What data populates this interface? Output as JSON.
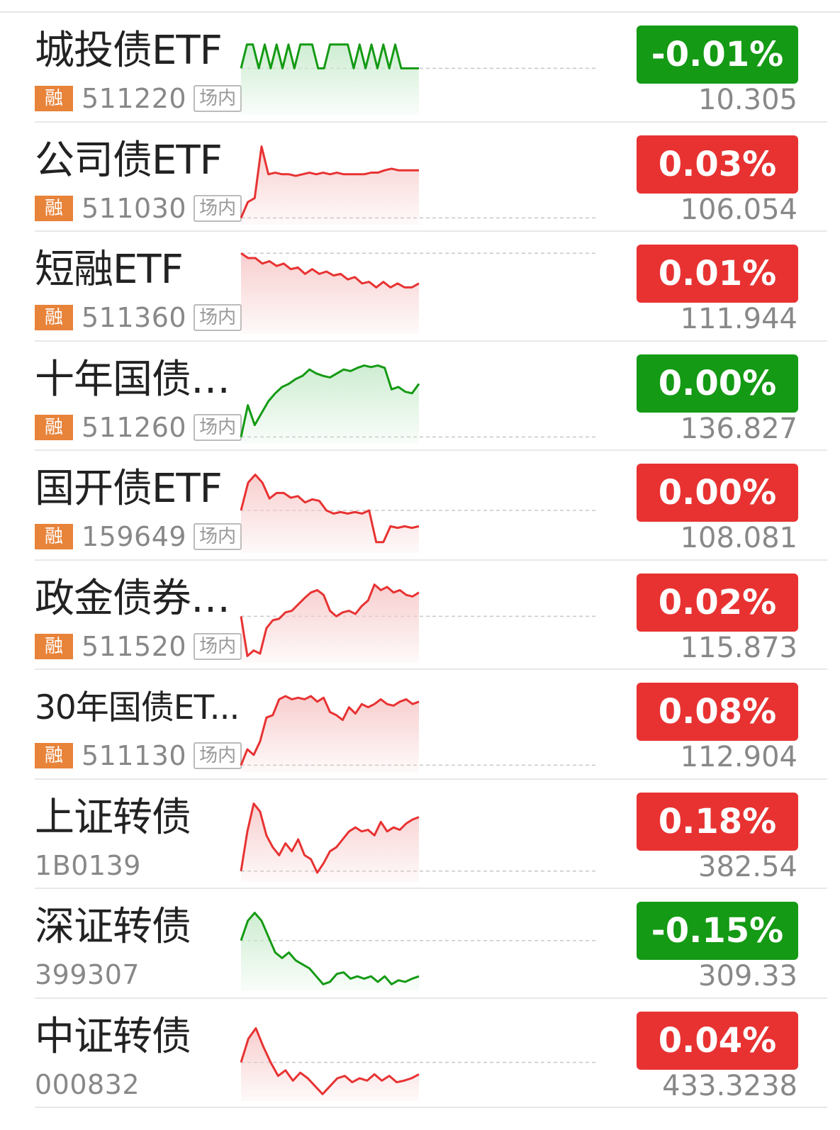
{
  "colors": {
    "up": "#e83232",
    "down": "#149a14",
    "up_fill": "#f7c9c9",
    "down_fill": "#c9ebcd",
    "badge_rong": "#e8833a"
  },
  "rows": [
    {
      "name": "城投债ETF",
      "badge": "融",
      "code": "511220",
      "market": "场内",
      "change_pct": "-0.01%",
      "price": "10.305",
      "direction": "down",
      "spark": [
        0.55,
        0.85,
        0.85,
        0.55,
        0.85,
        0.55,
        0.85,
        0.55,
        0.85,
        0.55,
        0.85,
        0.85,
        0.85,
        0.55,
        0.55,
        0.85,
        0.85,
        0.85,
        0.85,
        0.55,
        0.85,
        0.55,
        0.85,
        0.55,
        0.85,
        0.55,
        0.85,
        0.55,
        0.55,
        0.55,
        0.55
      ]
    },
    {
      "name": "公司债ETF",
      "badge": "融",
      "code": "511030",
      "market": "场内",
      "change_pct": "0.03%",
      "price": "106.054",
      "direction": "up",
      "spark": [
        0.05,
        0.25,
        0.3,
        0.95,
        0.6,
        0.62,
        0.6,
        0.6,
        0.58,
        0.6,
        0.62,
        0.6,
        0.62,
        0.6,
        0.62,
        0.6,
        0.6,
        0.6,
        0.6,
        0.62,
        0.62,
        0.65,
        0.67,
        0.65,
        0.65,
        0.65,
        0.65
      ]
    },
    {
      "name": "短融ETF",
      "badge": "融",
      "code": "511360",
      "market": "场内",
      "change_pct": "0.01%",
      "price": "111.944",
      "direction": "up",
      "spark": [
        0.98,
        0.92,
        0.92,
        0.85,
        0.88,
        0.82,
        0.85,
        0.78,
        0.8,
        0.72,
        0.78,
        0.72,
        0.75,
        0.7,
        0.72,
        0.65,
        0.68,
        0.6,
        0.62,
        0.55,
        0.62,
        0.55,
        0.6,
        0.55,
        0.55,
        0.6
      ]
    },
    {
      "name": "十年国债ETF",
      "badge": "融",
      "code": "511260",
      "market": "场内",
      "change_pct": "0.00%",
      "price": "136.827",
      "direction": "down",
      "spark": [
        0.05,
        0.45,
        0.2,
        0.35,
        0.5,
        0.6,
        0.68,
        0.72,
        0.78,
        0.82,
        0.9,
        0.85,
        0.82,
        0.8,
        0.85,
        0.9,
        0.88,
        0.92,
        0.95,
        0.93,
        0.95,
        0.92,
        0.65,
        0.68,
        0.62,
        0.6,
        0.72
      ]
    },
    {
      "name": "国开债ETF",
      "badge": "融",
      "code": "159649",
      "market": "场内",
      "change_pct": "0.00%",
      "price": "108.081",
      "direction": "up",
      "spark": [
        0.5,
        0.85,
        0.95,
        0.85,
        0.65,
        0.72,
        0.72,
        0.66,
        0.68,
        0.6,
        0.64,
        0.62,
        0.5,
        0.46,
        0.48,
        0.46,
        0.48,
        0.46,
        0.5,
        0.1,
        0.1,
        0.3,
        0.28,
        0.3,
        0.28,
        0.3
      ]
    },
    {
      "name": "政金债券ETF",
      "badge": "融",
      "code": "511520",
      "market": "场内",
      "change_pct": "0.02%",
      "price": "115.873",
      "direction": "up",
      "spark": [
        0.55,
        0.05,
        0.12,
        0.08,
        0.4,
        0.5,
        0.52,
        0.6,
        0.62,
        0.7,
        0.78,
        0.85,
        0.88,
        0.82,
        0.62,
        0.55,
        0.6,
        0.62,
        0.58,
        0.68,
        0.75,
        0.95,
        0.88,
        0.92,
        0.85,
        0.88,
        0.82,
        0.8,
        0.85
      ]
    },
    {
      "name": "30年国债ET...",
      "badge": "融",
      "code": "511130",
      "market": "场内",
      "change_pct": "0.08%",
      "price": "112.904",
      "direction": "up",
      "spark": [
        0.05,
        0.25,
        0.18,
        0.35,
        0.65,
        0.68,
        0.88,
        0.92,
        0.88,
        0.9,
        0.88,
        0.92,
        0.85,
        0.9,
        0.72,
        0.68,
        0.62,
        0.78,
        0.7,
        0.82,
        0.78,
        0.82,
        0.88,
        0.82,
        0.8,
        0.85,
        0.88,
        0.82,
        0.85
      ]
    },
    {
      "name": "上证转债",
      "badge": "",
      "code": "1B0139",
      "market": "",
      "change_pct": "0.18%",
      "price": "382.54",
      "direction": "up",
      "spark": [
        0.1,
        0.6,
        0.95,
        0.85,
        0.55,
        0.4,
        0.3,
        0.45,
        0.35,
        0.5,
        0.3,
        0.25,
        0.08,
        0.2,
        0.35,
        0.4,
        0.5,
        0.6,
        0.65,
        0.6,
        0.62,
        0.55,
        0.72,
        0.6,
        0.65,
        0.62,
        0.7,
        0.75,
        0.78
      ]
    },
    {
      "name": "深证转债",
      "badge": "",
      "code": "399307",
      "market": "",
      "change_pct": "-0.15%",
      "price": "309.33",
      "direction": "down",
      "spark": [
        0.6,
        0.85,
        0.95,
        0.85,
        0.65,
        0.45,
        0.38,
        0.45,
        0.35,
        0.3,
        0.25,
        0.15,
        0.05,
        0.08,
        0.18,
        0.2,
        0.12,
        0.15,
        0.12,
        0.15,
        0.08,
        0.15,
        0.05,
        0.1,
        0.08,
        0.12,
        0.15
      ]
    },
    {
      "name": "中证转债",
      "badge": "",
      "code": "000832",
      "market": "",
      "change_pct": "0.04%",
      "price": "433.3238",
      "direction": "up",
      "spark": [
        0.45,
        0.75,
        0.88,
        0.65,
        0.45,
        0.28,
        0.35,
        0.22,
        0.32,
        0.25,
        0.15,
        0.05,
        0.15,
        0.25,
        0.28,
        0.2,
        0.25,
        0.22,
        0.3,
        0.22,
        0.28,
        0.2,
        0.22,
        0.25,
        0.3
      ]
    }
  ]
}
